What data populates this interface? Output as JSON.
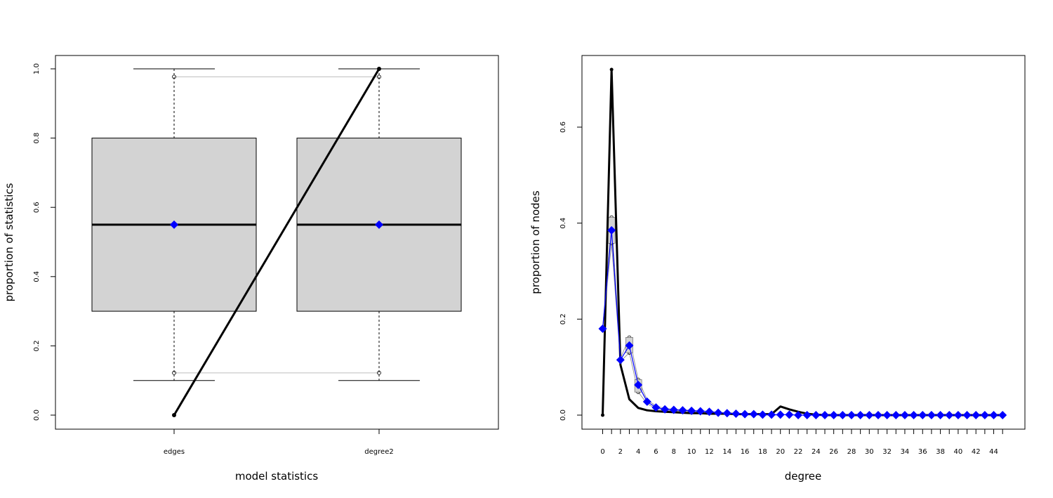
{
  "chart_data": [
    {
      "type": "box",
      "xlabel": "model statistics",
      "ylabel": "proportion of statistics",
      "ylim": [
        0,
        1
      ],
      "y_ticks": [
        "0.0",
        "0.2",
        "0.4",
        "0.6",
        "0.8",
        "1.0"
      ],
      "categories": [
        "edges",
        "degree2"
      ],
      "boxes": [
        {
          "name": "edges",
          "whisker_low": 0.1,
          "q1": 0.3,
          "median": 0.55,
          "q3": 0.8,
          "whisker_high": 1.0,
          "outliers": [
            0.122,
            0.977
          ],
          "mean": 0.55
        },
        {
          "name": "degree2",
          "whisker_low": 0.1,
          "q1": 0.3,
          "median": 0.55,
          "q3": 0.8,
          "whisker_high": 1.0,
          "outliers": [
            0.122,
            0.977
          ],
          "mean": 0.55
        }
      ],
      "observed_line": {
        "values": [
          0.0,
          1.0
        ],
        "color": "#000000"
      },
      "reference_lines": [
        0.122,
        0.977
      ],
      "mean_marker_color": "#0000ff",
      "box_fill": "#d3d3d3"
    },
    {
      "type": "line",
      "xlabel": "degree",
      "ylabel": "proportion of nodes",
      "x_tick_labels": [
        0,
        2,
        4,
        6,
        8,
        10,
        12,
        14,
        16,
        18,
        20,
        22,
        24,
        26,
        28,
        30,
        32,
        34,
        36,
        38,
        40,
        42,
        44
      ],
      "y_ticks": [
        "0.0",
        "0.2",
        "0.4",
        "0.6"
      ],
      "ylim": [
        0,
        0.72
      ],
      "xlim": [
        0,
        45
      ],
      "observed": {
        "color": "#000000",
        "x": [
          0,
          1,
          2,
          3,
          4,
          5,
          6,
          7,
          8,
          9,
          10,
          11,
          12,
          13,
          14,
          15,
          16,
          17,
          18,
          19,
          20,
          21,
          22,
          23,
          24,
          25,
          26,
          27,
          28,
          29,
          30,
          31,
          32,
          33,
          34,
          35,
          36,
          37,
          38,
          39,
          40,
          41,
          42,
          43,
          44,
          45
        ],
        "values": [
          0.0,
          0.72,
          0.105,
          0.033,
          0.015,
          0.01,
          0.008,
          0.007,
          0.006,
          0.005,
          0.004,
          0.004,
          0.003,
          0.003,
          0.003,
          0.002,
          0.002,
          0.002,
          0.002,
          0.002,
          0.018,
          0.012,
          0.007,
          0.003,
          0.001,
          0.0,
          0.0,
          0.0,
          0.0,
          0.0,
          0.0,
          0.0,
          0.0,
          0.0,
          0.0,
          0.0,
          0.0,
          0.0,
          0.0,
          0.0,
          0.0,
          0.0,
          0.0,
          0.0,
          0.0,
          0.0
        ]
      },
      "simulated_mean": {
        "color": "#0000ff",
        "x": [
          0,
          1,
          2,
          3,
          4,
          5,
          6,
          7,
          8,
          9,
          10,
          11,
          12,
          13,
          14,
          15,
          16,
          17,
          18,
          19,
          20,
          21,
          22,
          23,
          24,
          25,
          26,
          27,
          28,
          29,
          30,
          31,
          32,
          33,
          34,
          35,
          36,
          37,
          38,
          39,
          40,
          41,
          42,
          43,
          44,
          45
        ],
        "values": [
          0.18,
          0.385,
          0.115,
          0.145,
          0.063,
          0.028,
          0.016,
          0.012,
          0.011,
          0.01,
          0.009,
          0.008,
          0.007,
          0.005,
          0.004,
          0.003,
          0.002,
          0.002,
          0.001,
          0.001,
          0.001,
          0.001,
          0.0,
          0.0,
          0.0,
          0.0,
          0.0,
          0.0,
          0.0,
          0.0,
          0.0,
          0.0,
          0.0,
          0.0,
          0.0,
          0.0,
          0.0,
          0.0,
          0.0,
          0.0,
          0.0,
          0.0,
          0.0,
          0.0,
          0.0,
          0.0
        ]
      },
      "simulated_high": {
        "color": "#999999",
        "x": [
          0,
          1,
          2,
          3,
          4,
          5,
          6,
          7,
          8,
          9,
          10,
          11,
          12,
          13,
          14,
          15,
          16,
          17,
          18,
          19,
          20
        ],
        "values": [
          0.18,
          0.412,
          0.118,
          0.162,
          0.074,
          0.032,
          0.019,
          0.014,
          0.012,
          0.011,
          0.01,
          0.009,
          0.008,
          0.006,
          0.005,
          0.004,
          0.003,
          0.002,
          0.002,
          0.001,
          0.001
        ]
      },
      "simulated_low": {
        "color": "#999999",
        "x": [
          0,
          1,
          2,
          3,
          4,
          5,
          6,
          7,
          8,
          9,
          10,
          11,
          12,
          13,
          14,
          15,
          16,
          17,
          18,
          19,
          20
        ],
        "values": [
          0.18,
          0.358,
          0.112,
          0.13,
          0.048,
          0.024,
          0.013,
          0.01,
          0.009,
          0.008,
          0.007,
          0.006,
          0.005,
          0.004,
          0.003,
          0.002,
          0.001,
          0.001,
          0.0,
          0.0,
          0.0
        ]
      }
    }
  ]
}
